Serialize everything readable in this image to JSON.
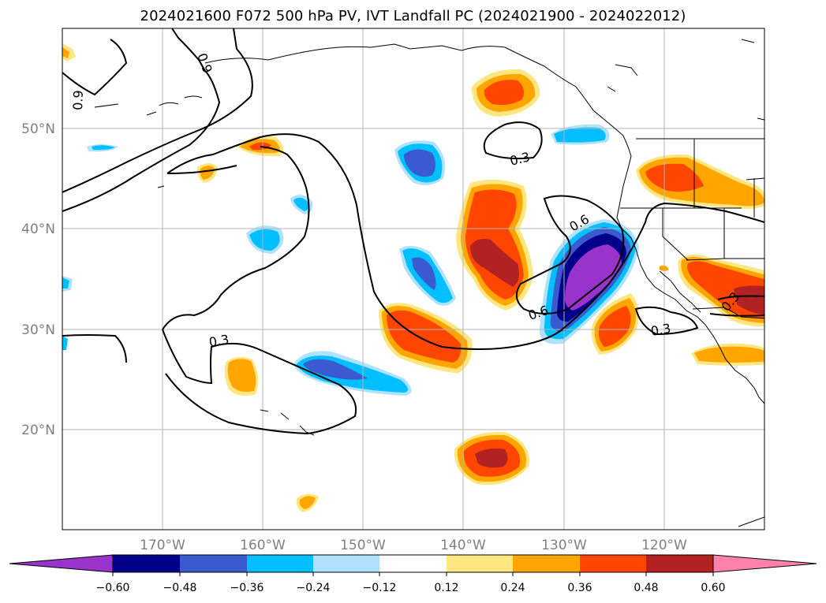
{
  "title": "2024021600 F072 500 hPa PV, IVT Landfall PC (2024021900 - 2024022012)",
  "map": {
    "projection": "lat-lon",
    "lon_range": [
      "180°W",
      "110°W"
    ],
    "lat_range": [
      "10°N",
      "60°N"
    ],
    "lat_ticks": [
      "50°N",
      "40°N",
      "30°N",
      "20°N"
    ],
    "lon_ticks": [
      "170°W",
      "160°W",
      "150°W",
      "140°W",
      "130°W",
      "120°W"
    ],
    "grid": true
  },
  "contours": {
    "color": "#000000",
    "labels": [
      "0.9",
      "0.9",
      "0.3",
      "0.6",
      "0.6",
      "0.3",
      "0.3",
      "0.3"
    ]
  },
  "colorbar": {
    "extend": "both",
    "ticks": [
      "−0.60",
      "−0.48",
      "−0.36",
      "−0.24",
      "−0.12",
      "0.12",
      "0.24",
      "0.36",
      "0.48",
      "0.60"
    ],
    "colors": [
      "#9933cc",
      "#00008b",
      "#3a5bcf",
      "#00bfff",
      "#b0e2ff",
      "#ffffff",
      "#ffe680",
      "#ffa500",
      "#ff4500",
      "#b22222",
      "#ff82ab"
    ]
  }
}
